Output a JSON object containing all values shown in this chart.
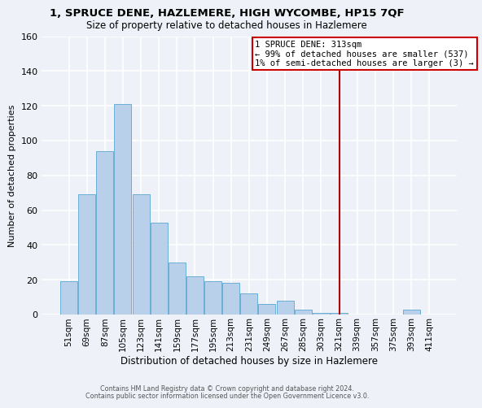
{
  "title_line1": "1, SPRUCE DENE, HAZLEMERE, HIGH WYCOMBE, HP15 7QF",
  "title_line2": "Size of property relative to detached houses in Hazlemere",
  "xlabel": "Distribution of detached houses by size in Hazlemere",
  "ylabel": "Number of detached properties",
  "bar_labels": [
    "51sqm",
    "69sqm",
    "87sqm",
    "105sqm",
    "123sqm",
    "141sqm",
    "159sqm",
    "177sqm",
    "195sqm",
    "213sqm",
    "231sqm",
    "249sqm",
    "267sqm",
    "285sqm",
    "303sqm",
    "321sqm",
    "339sqm",
    "357sqm",
    "375sqm",
    "393sqm",
    "411sqm"
  ],
  "bar_values": [
    19,
    69,
    94,
    121,
    69,
    53,
    30,
    22,
    19,
    18,
    12,
    6,
    8,
    3,
    1,
    1,
    0,
    0,
    0,
    3,
    0
  ],
  "bar_color": "#b8d0ea",
  "bar_edge_color": "#6baed6",
  "vline_index": 15,
  "vline_color": "#aa0000",
  "annotation_title": "1 SPRUCE DENE: 313sqm",
  "annotation_line1": "← 99% of detached houses are smaller (537)",
  "annotation_line2": "1% of semi-detached houses are larger (3) →",
  "annotation_box_facecolor": "#ffffff",
  "annotation_box_edgecolor": "#cc0000",
  "ylim": [
    0,
    160
  ],
  "yticks": [
    0,
    20,
    40,
    60,
    80,
    100,
    120,
    140,
    160
  ],
  "footer_line1": "Contains HM Land Registry data © Crown copyright and database right 2024.",
  "footer_line2": "Contains public sector information licensed under the Open Government Licence v3.0.",
  "background_color": "#eef2f8",
  "grid_color": "#ffffff",
  "title1_fontsize": 9.5,
  "title2_fontsize": 8.5,
  "ylabel_fontsize": 8.0,
  "xlabel_fontsize": 8.5,
  "tick_fontsize": 7.5,
  "ytick_fontsize": 8.0,
  "footer_fontsize": 5.8,
  "ann_fontsize": 7.5
}
